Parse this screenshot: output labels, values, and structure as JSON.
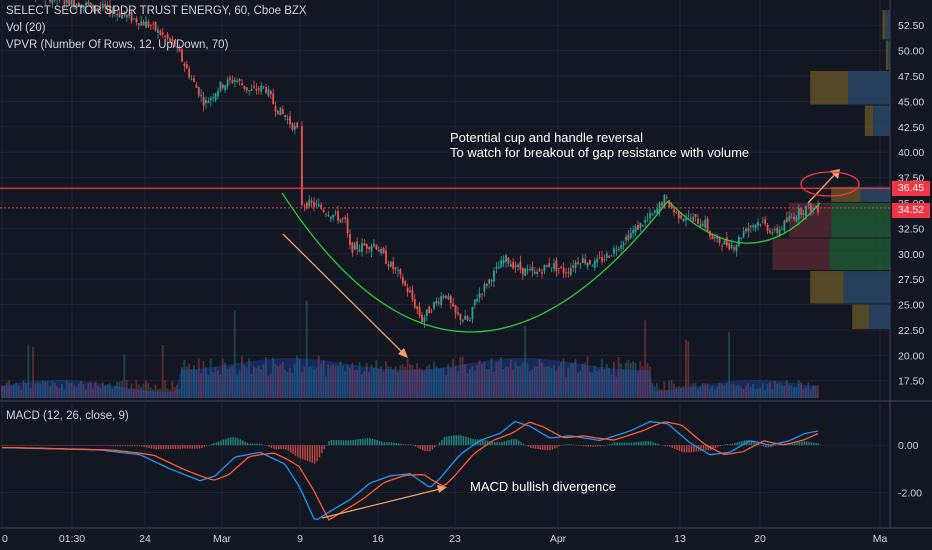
{
  "header": {
    "symbol_line": "SELECT SECTOR SPDR TRUST ENERGY, 60, Cboe BZX",
    "vol_line": "Vol (20)",
    "vpvr_line": "VPVR (Number Of Rows, 12, Up/Down, 70)",
    "macd_line": "MACD (12, 26, close, 9)"
  },
  "annotations": {
    "cup_text_1": "Potential cup and handle reversal",
    "cup_text_2": "To watch for breakout of gap resistance with volume",
    "macd_text": "MACD bullish divergence"
  },
  "price_labels": {
    "resistance": "36.45",
    "last": "34.52"
  },
  "colors": {
    "background": "#131722",
    "up": "#26a69a",
    "down": "#ef5350",
    "resistance_line": "#f23645",
    "cup_curve": "#2ecc40",
    "arrow": "#f0a070",
    "macd_line": "#2196f3",
    "signal_line": "#ff5a36",
    "text": "#d1d4dc"
  },
  "chart_data": {
    "type": "candlestick",
    "price_axis": {
      "ylim": [
        15.8,
        54.0
      ],
      "ticks": [
        "52.50",
        "50.00",
        "47.50",
        "45.00",
        "42.50",
        "40.00",
        "37.50",
        "35.00",
        "32.50",
        "30.00",
        "27.50",
        "25.00",
        "22.50",
        "20.00",
        "17.50"
      ]
    },
    "macd_axis": {
      "ylim": [
        -3.5,
        1.7
      ],
      "ticks": [
        "0.00",
        "-2.00"
      ]
    },
    "time_axis": {
      "labels": [
        "0",
        "01:30",
        "24",
        "Mar",
        "9",
        "16",
        "23",
        "Apr",
        "13",
        "20",
        "Ma"
      ]
    },
    "resistance_level": 36.45,
    "last_price": 34.52,
    "price_path": [
      {
        "x": 0,
        "y": 56.5
      },
      {
        "x": 60,
        "y": 55.0
      },
      {
        "x": 110,
        "y": 54.0
      },
      {
        "x": 150,
        "y": 52.5
      },
      {
        "x": 175,
        "y": 50.5
      },
      {
        "x": 190,
        "y": 47.5
      },
      {
        "x": 205,
        "y": 44.8
      },
      {
        "x": 220,
        "y": 46.5
      },
      {
        "x": 235,
        "y": 47.2
      },
      {
        "x": 250,
        "y": 46.0
      },
      {
        "x": 265,
        "y": 46.4
      },
      {
        "x": 275,
        "y": 44.5
      },
      {
        "x": 285,
        "y": 43.5
      },
      {
        "x": 298,
        "y": 42.0
      },
      {
        "x": 302,
        "y": 35.0
      },
      {
        "x": 315,
        "y": 34.8
      },
      {
        "x": 330,
        "y": 34.0
      },
      {
        "x": 345,
        "y": 33.2
      },
      {
        "x": 350,
        "y": 30.5
      },
      {
        "x": 365,
        "y": 30.8
      },
      {
        "x": 375,
        "y": 31.0
      },
      {
        "x": 385,
        "y": 29.5
      },
      {
        "x": 398,
        "y": 28.0
      },
      {
        "x": 410,
        "y": 26.0
      },
      {
        "x": 422,
        "y": 23.5
      },
      {
        "x": 432,
        "y": 24.8
      },
      {
        "x": 445,
        "y": 26.2
      },
      {
        "x": 455,
        "y": 24.0
      },
      {
        "x": 470,
        "y": 23.3
      },
      {
        "x": 475,
        "y": 25.5
      },
      {
        "x": 490,
        "y": 27.5
      },
      {
        "x": 505,
        "y": 29.5
      },
      {
        "x": 520,
        "y": 28.5
      },
      {
        "x": 535,
        "y": 28.0
      },
      {
        "x": 550,
        "y": 29.0
      },
      {
        "x": 565,
        "y": 28.2
      },
      {
        "x": 580,
        "y": 29.5
      },
      {
        "x": 595,
        "y": 29.0
      },
      {
        "x": 610,
        "y": 30.0
      },
      {
        "x": 625,
        "y": 31.5
      },
      {
        "x": 640,
        "y": 32.8
      },
      {
        "x": 655,
        "y": 34.0
      },
      {
        "x": 665,
        "y": 35.5
      },
      {
        "x": 675,
        "y": 34.0
      },
      {
        "x": 690,
        "y": 33.5
      },
      {
        "x": 705,
        "y": 33.0
      },
      {
        "x": 712,
        "y": 31.5
      },
      {
        "x": 725,
        "y": 31.0
      },
      {
        "x": 735,
        "y": 30.8
      },
      {
        "x": 745,
        "y": 32.5
      },
      {
        "x": 760,
        "y": 33.2
      },
      {
        "x": 775,
        "y": 32.0
      },
      {
        "x": 790,
        "y": 33.5
      },
      {
        "x": 805,
        "y": 34.5
      },
      {
        "x": 818,
        "y": 34.5
      }
    ],
    "macd_path": [
      {
        "x": 0,
        "y": -0.1
      },
      {
        "x": 100,
        "y": -0.2
      },
      {
        "x": 140,
        "y": -0.4
      },
      {
        "x": 170,
        "y": -1.0
      },
      {
        "x": 200,
        "y": -1.5
      },
      {
        "x": 215,
        "y": -1.3
      },
      {
        "x": 235,
        "y": -0.5
      },
      {
        "x": 260,
        "y": -0.3
      },
      {
        "x": 285,
        "y": -0.8
      },
      {
        "x": 300,
        "y": -1.8
      },
      {
        "x": 315,
        "y": -3.2
      },
      {
        "x": 330,
        "y": -2.8
      },
      {
        "x": 350,
        "y": -2.3
      },
      {
        "x": 370,
        "y": -1.6
      },
      {
        "x": 390,
        "y": -1.3
      },
      {
        "x": 410,
        "y": -1.2
      },
      {
        "x": 430,
        "y": -1.8
      },
      {
        "x": 440,
        "y": -1.4
      },
      {
        "x": 460,
        "y": -0.4
      },
      {
        "x": 480,
        "y": 0.2
      },
      {
        "x": 500,
        "y": 0.5
      },
      {
        "x": 515,
        "y": 1.0
      },
      {
        "x": 530,
        "y": 0.8
      },
      {
        "x": 550,
        "y": 0.3
      },
      {
        "x": 570,
        "y": 0.4
      },
      {
        "x": 600,
        "y": 0.2
      },
      {
        "x": 630,
        "y": 0.6
      },
      {
        "x": 650,
        "y": 1.0
      },
      {
        "x": 668,
        "y": 0.9
      },
      {
        "x": 690,
        "y": 0.1
      },
      {
        "x": 710,
        "y": -0.4
      },
      {
        "x": 730,
        "y": -0.3
      },
      {
        "x": 750,
        "y": 0.2
      },
      {
        "x": 770,
        "y": 0.0
      },
      {
        "x": 790,
        "y": 0.2
      },
      {
        "x": 805,
        "y": 0.5
      },
      {
        "x": 818,
        "y": 0.6
      }
    ],
    "vpvr_rows": [
      {
        "low": 51.0,
        "high": 54.0,
        "up": 0.05,
        "down": 0.04
      },
      {
        "low": 48.0,
        "high": 51.0,
        "up": 0.02,
        "down": 0.03
      },
      {
        "low": 44.6,
        "high": 48.0,
        "up": 0.5,
        "down": 0.45
      },
      {
        "low": 41.5,
        "high": 44.6,
        "up": 0.2,
        "down": 0.1
      },
      {
        "low": 35.0,
        "high": 36.6,
        "up": 0.35,
        "down": 0.35
      },
      {
        "low": 31.5,
        "high": 35.0,
        "up": 0.7,
        "down": 0.5
      },
      {
        "low": 28.3,
        "high": 31.5,
        "up": 0.72,
        "down": 0.68
      },
      {
        "low": 25.0,
        "high": 28.3,
        "up": 0.55,
        "down": 0.4
      },
      {
        "low": 22.5,
        "high": 25.0,
        "up": 0.25,
        "down": 0.2
      }
    ]
  }
}
